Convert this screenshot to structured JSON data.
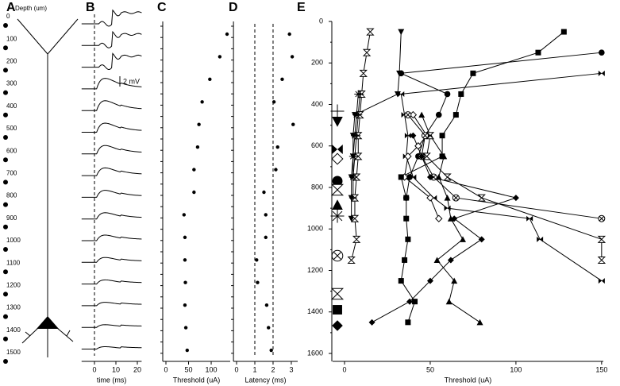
{
  "chart_data": [
    {
      "panel": "A",
      "type": "depth-schematic",
      "title": "Depth (um)",
      "ylim": [
        0,
        1500
      ],
      "yticks": [
        0,
        100,
        200,
        300,
        400,
        500,
        600,
        700,
        800,
        900,
        1000,
        1100,
        1200,
        1300,
        1400,
        1500
      ]
    },
    {
      "panel": "B",
      "type": "traces",
      "xlabel": "time (ms)",
      "xlim": [
        -6,
        22
      ],
      "xticks": [
        0,
        10,
        20
      ],
      "vlines": [
        0
      ],
      "scale_bar": "2 mV"
    },
    {
      "panel": "C",
      "type": "scatter",
      "xlabel": "Threshold (uA)",
      "xlim": [
        -7,
        142
      ],
      "xticks": [
        0,
        50,
        100
      ],
      "categories": [
        null,
        null,
        null,
        null,
        null,
        null,
        null,
        null,
        null,
        null,
        null,
        null,
        null,
        null,
        null
      ],
      "values": [
        135,
        119,
        97,
        80,
        73,
        70,
        62,
        62,
        40,
        42,
        42,
        43,
        42,
        44,
        47
      ]
    },
    {
      "panel": "D",
      "type": "scatter",
      "xlabel": "Latency (ms)",
      "xlim": [
        -0.17,
        3.35
      ],
      "xticks": [
        0,
        1,
        2,
        3
      ],
      "vlines": [
        1,
        2
      ],
      "categories": [
        null,
        null,
        null,
        null,
        null,
        null,
        null,
        null,
        null,
        null,
        null,
        null,
        null,
        null,
        null
      ],
      "values": [
        2.9,
        3.05,
        2.5,
        2.05,
        3.1,
        2.25,
        2.15,
        1.5,
        1.6,
        1.6,
        1.1,
        1.15,
        1.65,
        1.75,
        1.9
      ]
    },
    {
      "panel": "E",
      "type": "line",
      "xlabel": "Threshold (uA)",
      "xlim": [
        -7,
        151
      ],
      "ylim": [
        0,
        1600
      ],
      "xticks": [
        0,
        50,
        100,
        150
      ],
      "yticks": [
        0,
        200,
        400,
        600,
        800,
        1000,
        1200,
        1400,
        1600
      ],
      "y_inverted": true,
      "series": [
        {
          "marker": "plus",
          "color": "#000000",
          "x": [
            9,
            8,
            7,
            6,
            5,
            5
          ],
          "y": [
            350,
            450,
            550,
            650,
            750,
            850
          ]
        },
        {
          "marker": "triangle-down",
          "color": "#000000",
          "x": [
            33,
            32,
            31,
            6,
            5,
            5,
            4,
            4,
            4
          ],
          "y": [
            50,
            250,
            350,
            450,
            550,
            650,
            750,
            850,
            950
          ]
        },
        {
          "marker": "bowtie",
          "color": "#000000",
          "x": [
            150,
            33,
            35,
            37,
            36,
            40,
            52,
            60,
            108,
            114,
            150
          ],
          "y": [
            250,
            350,
            450,
            550,
            650,
            750,
            850,
            900,
            950,
            1050,
            1250
          ]
        },
        {
          "marker": "diamond-open",
          "color": "#000000",
          "x": [
            40,
            48,
            43,
            37,
            35,
            50,
            55
          ],
          "y": [
            450,
            550,
            600,
            650,
            750,
            850,
            950
          ]
        },
        {
          "marker": "circle",
          "color": "#000000",
          "x": [
            150,
            33,
            60,
            55,
            47,
            43,
            38,
            36
          ],
          "y": [
            150,
            250,
            350,
            450,
            550,
            650,
            750,
            850
          ]
        },
        {
          "marker": "hourglass",
          "color": "#000000",
          "x": [
            15,
            13,
            11,
            10,
            9,
            8,
            8,
            7,
            6,
            6,
            7,
            4
          ],
          "y": [
            50,
            150,
            250,
            350,
            450,
            550,
            650,
            750,
            850,
            950,
            1050,
            1150
          ]
        },
        {
          "marker": "triangle-up",
          "color": "#000000",
          "x": [
            45,
            50,
            58,
            55,
            60,
            62,
            69,
            54,
            64,
            61,
            79
          ],
          "y": [
            450,
            550,
            650,
            750,
            850,
            950,
            1050,
            1150,
            1250,
            1350,
            1450
          ]
        },
        {
          "marker": "asterisk",
          "color": "#000000",
          "x": [
            8,
            7,
            6,
            5,
            5
          ],
          "y": [
            350,
            450,
            550,
            650,
            750
          ]
        },
        {
          "marker": "circle-x",
          "color": "#000000",
          "x": [
            37,
            47,
            45,
            52,
            65,
            150
          ],
          "y": [
            450,
            550,
            650,
            750,
            850,
            950
          ]
        },
        {
          "marker": "hourglass",
          "color": "#000000",
          "x": [
            50,
            48,
            60,
            80,
            150,
            150
          ],
          "y": [
            550,
            650,
            750,
            850,
            1050,
            1150
          ]
        },
        {
          "marker": "square",
          "color": "#000000",
          "x": [
            128,
            113,
            75,
            68,
            65,
            57,
            57,
            33,
            36,
            36,
            37,
            35,
            33,
            41,
            37
          ],
          "y": [
            50,
            150,
            250,
            350,
            450,
            550,
            650,
            750,
            850,
            950,
            1050,
            1150,
            1250,
            1350,
            1450
          ]
        },
        {
          "marker": "diamond",
          "color": "#000000",
          "x": [
            40,
            45,
            50,
            100,
            64,
            80,
            62,
            50,
            38,
            16
          ],
          "y": [
            550,
            650,
            750,
            850,
            950,
            1050,
            1150,
            1250,
            1350,
            1450
          ]
        }
      ]
    }
  ]
}
